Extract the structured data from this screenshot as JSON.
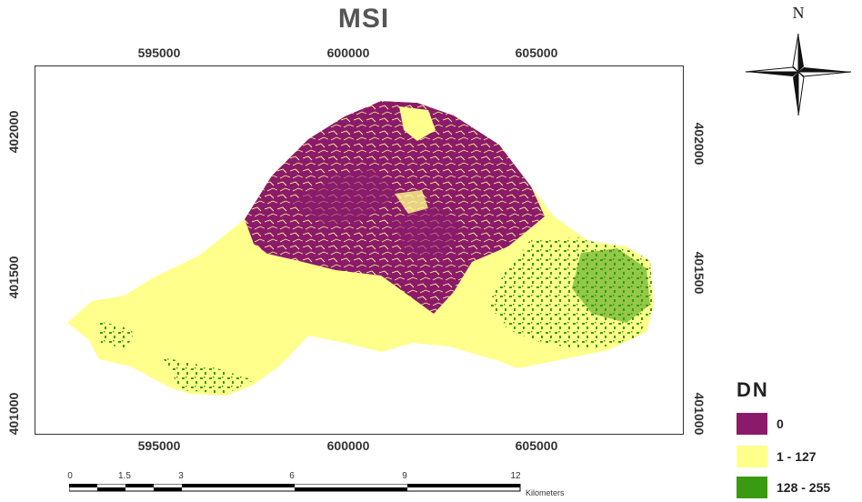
{
  "map": {
    "title": "MSI",
    "x_ticks_top": [
      "595000",
      "600000",
      "605000"
    ],
    "x_ticks_bottom": [
      "595000",
      "600000",
      "605000"
    ],
    "y_ticks_left": [
      "402000",
      "401500",
      "401000"
    ],
    "y_ticks_right": [
      "402000",
      "401500",
      "401000"
    ]
  },
  "north_arrow": {
    "label": "N",
    "icon": "north-arrow-compass-icon"
  },
  "legend": {
    "title": "DN",
    "items": [
      {
        "label": "0",
        "color": "#8B1A6B"
      },
      {
        "label": "1 - 127",
        "color": "#FFFF8C"
      },
      {
        "label": "128 - 255",
        "color": "#3A9A12"
      }
    ]
  },
  "scale_bar": {
    "labels": [
      "0",
      "1.5",
      "3",
      "6",
      "9",
      "12"
    ],
    "unit": "Kilometers"
  },
  "colors": {
    "class_0": "#8B1A6B",
    "class_1_127": "#FFFF8C",
    "class_128_255": "#3A9A12",
    "frame": "#333333"
  }
}
